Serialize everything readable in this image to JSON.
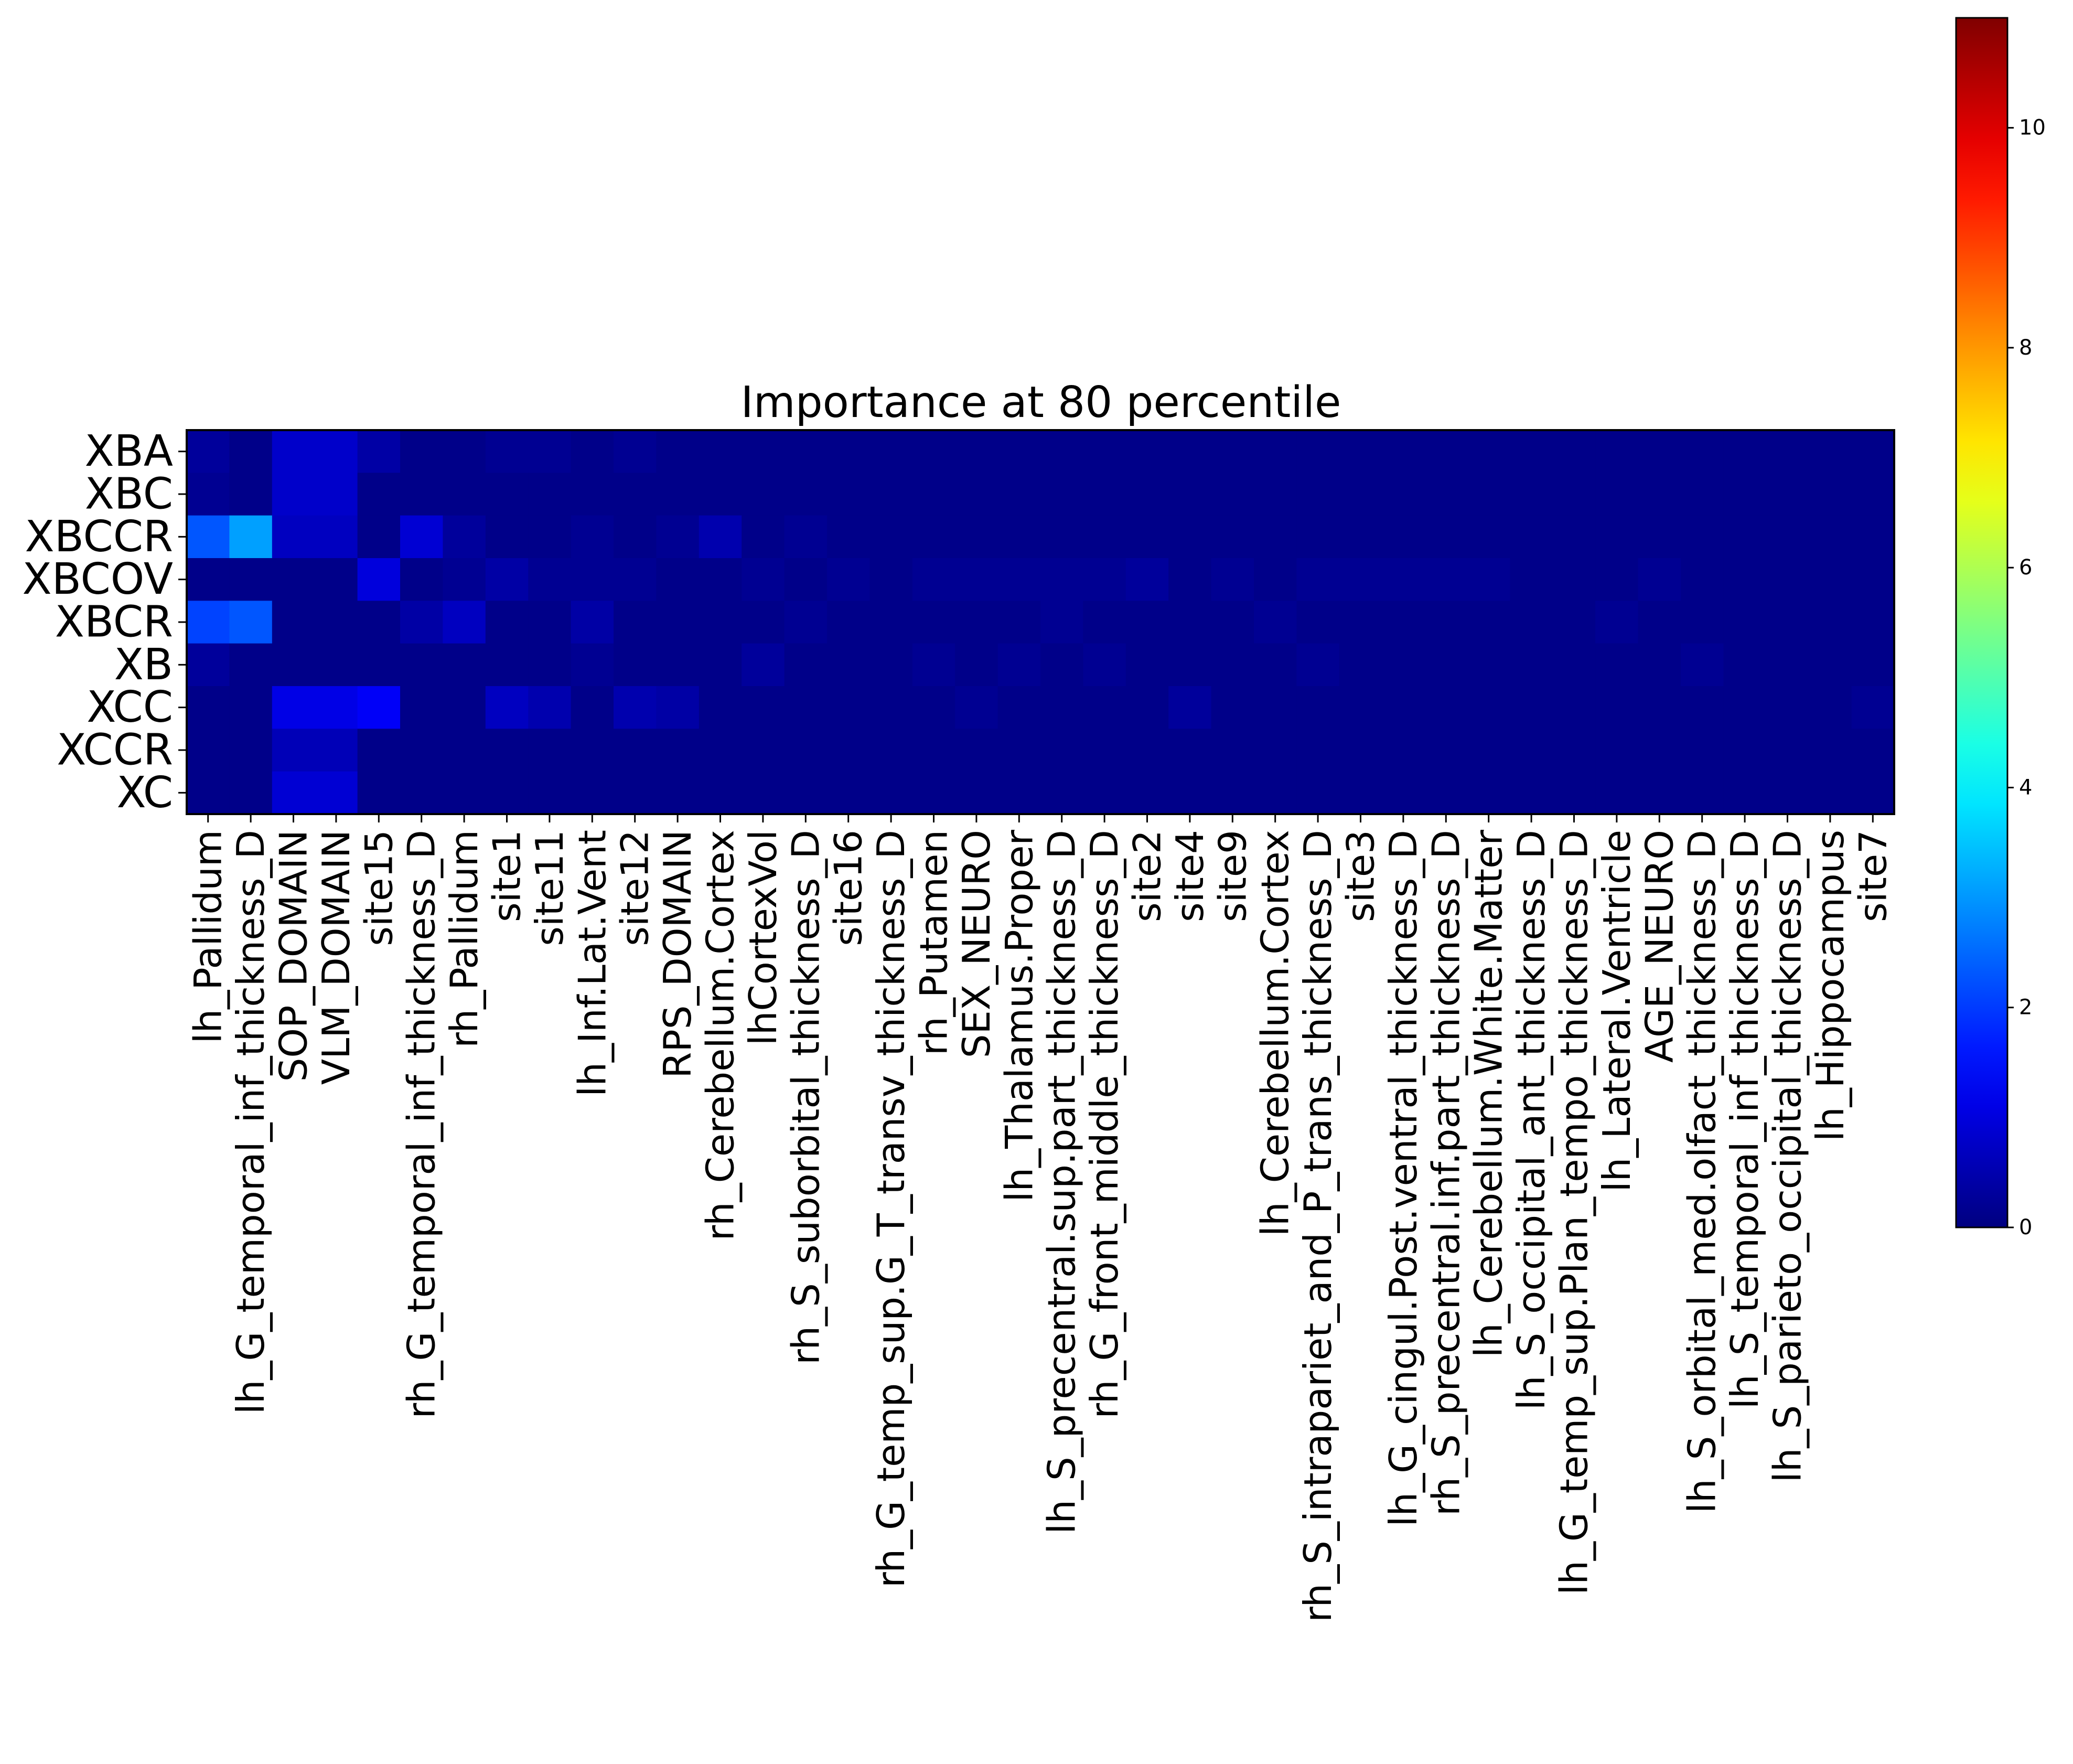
{
  "chart_data": {
    "type": "heatmap",
    "title": "Importance at 80 percentile",
    "colormap": "jet",
    "rows": [
      "XBA",
      "XBC",
      "XBCCR",
      "XBCOV",
      "XBCR",
      "XB",
      "XCC",
      "XCCR",
      "XC"
    ],
    "columns": [
      "lh_Pallidum",
      "lh_G_temporal_inf_thickness_D",
      "SOP_DOMAIN",
      "VLM_DOMAIN",
      "site15",
      "rh_G_temporal_inf_thickness_D",
      "rh_Pallidum",
      "site1",
      "site11",
      "lh_Inf.Lat.Vent",
      "site12",
      "RPS_DOMAIN",
      "rh_Cerebellum.Cortex",
      "lhCortexVol",
      "rh_S_suborbital_thickness_D",
      "site16",
      "rh_G_temp_sup.G_T_transv_thickness_D",
      "rh_Putamen",
      "SEX_NEURO",
      "lh_Thalamus.Proper",
      "lh_S_precentral.sup.part_thickness_D",
      "rh_G_front_middle_thickness_D",
      "site2",
      "site4",
      "site9",
      "lh_Cerebellum.Cortex",
      "rh_S_intrapariet_and_P_trans_thickness_D",
      "site3",
      "lh_G_cingul.Post.ventral_thickness_D",
      "rh_S_precentral.inf.part_thickness_D",
      "lh_Cerebellum.White.Matter",
      "lh_S_occipital_ant_thickness_D",
      "lh_G_temp_sup.Plan_tempo_thickness_D",
      "lh_Lateral.Ventricle",
      "AGE_NEURO",
      "lh_S_orbital_med.olfact_thickness_D",
      "lh_S_temporal_inf_thickness_D",
      "lh_S_parieto_occipital_thickness_D",
      "lh_Hippocampus",
      "site7"
    ],
    "values": [
      [
        0.3,
        0.1,
        0.8,
        0.8,
        0.4,
        0.1,
        0.1,
        0.2,
        0.2,
        0.1,
        0.2,
        0.1,
        0.1,
        0.1,
        0.1,
        0.1,
        0.1,
        0.1,
        0.1,
        0.1,
        0.1,
        0.1,
        0.1,
        0.1,
        0.1,
        0.1,
        0.1,
        0.1,
        0.1,
        0.1,
        0.1,
        0.1,
        0.1,
        0.1,
        0.1,
        0.1,
        0.1,
        0.1,
        0.1,
        0.1
      ],
      [
        0.2,
        0.1,
        0.8,
        0.8,
        0.1,
        0.1,
        0.1,
        0.1,
        0.1,
        0.1,
        0.1,
        0.1,
        0.1,
        0.1,
        0.1,
        0.1,
        0.1,
        0.1,
        0.1,
        0.1,
        0.1,
        0.1,
        0.1,
        0.1,
        0.1,
        0.1,
        0.1,
        0.1,
        0.1,
        0.1,
        0.1,
        0.1,
        0.1,
        0.1,
        0.1,
        0.1,
        0.1,
        0.1,
        0.1,
        0.1
      ],
      [
        2.3,
        3.1,
        0.7,
        0.7,
        0.1,
        0.9,
        0.3,
        0.1,
        0.1,
        0.2,
        0.1,
        0.2,
        0.5,
        0.1,
        0.2,
        0.1,
        0.1,
        0.1,
        0.1,
        0.1,
        0.1,
        0.1,
        0.1,
        0.1,
        0.1,
        0.1,
        0.1,
        0.1,
        0.1,
        0.1,
        0.1,
        0.1,
        0.1,
        0.1,
        0.1,
        0.1,
        0.1,
        0.1,
        0.1,
        0.1
      ],
      [
        0.1,
        0.1,
        0.1,
        0.1,
        1.0,
        0.1,
        0.2,
        0.4,
        0.2,
        0.2,
        0.2,
        0.1,
        0.1,
        0.2,
        0.1,
        0.2,
        0.1,
        0.2,
        0.2,
        0.2,
        0.2,
        0.2,
        0.3,
        0.1,
        0.2,
        0.1,
        0.2,
        0.2,
        0.2,
        0.2,
        0.2,
        0.1,
        0.1,
        0.1,
        0.2,
        0.1,
        0.1,
        0.1,
        0.1,
        0.1
      ],
      [
        2.1,
        2.3,
        0.1,
        0.1,
        0.1,
        0.4,
        0.7,
        0.1,
        0.1,
        0.4,
        0.1,
        0.1,
        0.1,
        0.1,
        0.2,
        0.1,
        0.1,
        0.1,
        0.1,
        0.1,
        0.2,
        0.1,
        0.1,
        0.1,
        0.1,
        0.2,
        0.1,
        0.1,
        0.1,
        0.1,
        0.1,
        0.1,
        0.1,
        0.2,
        0.1,
        0.1,
        0.1,
        0.1,
        0.1,
        0.1
      ],
      [
        0.3,
        0.1,
        0.1,
        0.1,
        0.1,
        0.1,
        0.1,
        0.1,
        0.1,
        0.2,
        0.1,
        0.1,
        0.1,
        0.3,
        0.1,
        0.1,
        0.1,
        0.2,
        0.1,
        0.2,
        0.1,
        0.2,
        0.1,
        0.1,
        0.1,
        0.1,
        0.2,
        0.1,
        0.1,
        0.1,
        0.1,
        0.1,
        0.1,
        0.1,
        0.1,
        0.2,
        0.1,
        0.1,
        0.1,
        0.1
      ],
      [
        0.1,
        0.1,
        1.1,
        1.1,
        1.3,
        0.1,
        0.1,
        0.7,
        0.5,
        0.1,
        0.5,
        0.4,
        0.1,
        0.1,
        0.1,
        0.1,
        0.1,
        0.1,
        0.2,
        0.1,
        0.1,
        0.1,
        0.1,
        0.3,
        0.1,
        0.1,
        0.1,
        0.1,
        0.1,
        0.1,
        0.1,
        0.1,
        0.1,
        0.1,
        0.1,
        0.1,
        0.1,
        0.1,
        0.1,
        0.2
      ],
      [
        0.1,
        0.1,
        0.6,
        0.6,
        0.1,
        0.1,
        0.1,
        0.1,
        0.1,
        0.1,
        0.1,
        0.1,
        0.1,
        0.1,
        0.1,
        0.1,
        0.1,
        0.1,
        0.1,
        0.1,
        0.1,
        0.1,
        0.1,
        0.1,
        0.1,
        0.1,
        0.1,
        0.1,
        0.1,
        0.1,
        0.1,
        0.1,
        0.1,
        0.1,
        0.1,
        0.1,
        0.1,
        0.1,
        0.1,
        0.1
      ],
      [
        0.1,
        0.1,
        0.9,
        0.9,
        0.1,
        0.1,
        0.1,
        0.1,
        0.1,
        0.1,
        0.1,
        0.1,
        0.1,
        0.1,
        0.1,
        0.1,
        0.1,
        0.1,
        0.1,
        0.1,
        0.1,
        0.1,
        0.1,
        0.1,
        0.1,
        0.1,
        0.1,
        0.1,
        0.1,
        0.1,
        0.1,
        0.1,
        0.1,
        0.1,
        0.1,
        0.1,
        0.1,
        0.1,
        0.1,
        0.1
      ]
    ],
    "colorbar": {
      "range": [
        0,
        11
      ],
      "ticks": [
        0,
        2,
        4,
        6,
        8,
        10
      ]
    }
  }
}
